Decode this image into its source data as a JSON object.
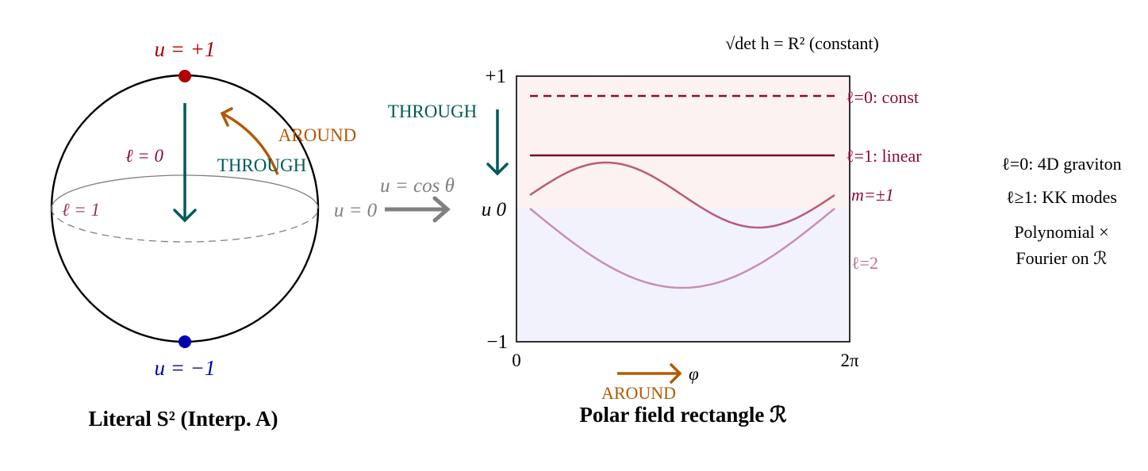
{
  "colors": {
    "north": "#b00000",
    "south": "#0000b0",
    "through": "#005a5a",
    "around": "#b35900",
    "mode": "#8b0a3a",
    "mode_light": "#b85c7a",
    "mode_l2": "#c890b0",
    "gray": "#808080",
    "upper_fill": "#fdf2f2",
    "lower_fill": "#f2f2fc"
  },
  "sphere": {
    "north_label": "u = +1",
    "south_label": "u = −1",
    "l0_label": "ℓ = 0",
    "l1_label": "ℓ = 1",
    "through_label": "THROUGH",
    "around_label": "AROUND",
    "equator_label": "u = 0",
    "caption": "Literal S² (Interp. A)"
  },
  "map": {
    "label": "u = cos θ"
  },
  "rectangle": {
    "title": "√det h = R² (constant)",
    "y_ticks": [
      "+1",
      "u 0",
      "−1"
    ],
    "x_ticks": [
      "0",
      "2π"
    ],
    "x_label": "φ",
    "through_label": "THROUGH",
    "around_label": "AROUND",
    "mode_labels": [
      "ℓ=0: const",
      "ℓ=1: linear",
      "m=±1",
      "ℓ=2"
    ],
    "caption": "Polar field rectangle ℛ"
  },
  "notes": [
    "ℓ=0: 4D graviton",
    "ℓ≥1: KK modes",
    "Polynomial ×",
    "Fourier on ℛ"
  ]
}
